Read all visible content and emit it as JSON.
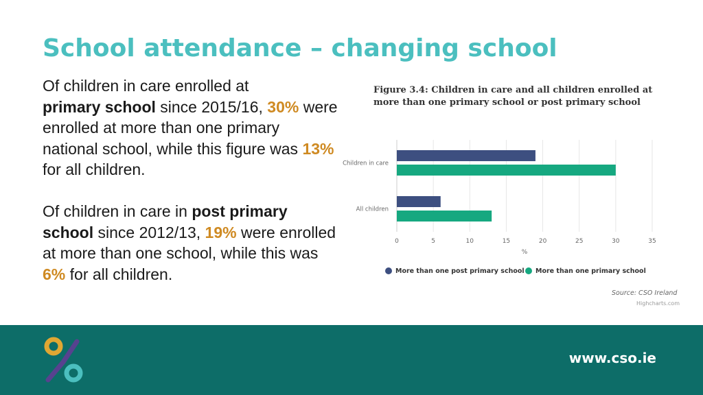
{
  "title": "School attendance – changing school",
  "paragraph1": {
    "t1": "Of children in care enrolled at",
    "bold": "primary school",
    "t2": "since 2015/16,",
    "pct1": "30%",
    "t3": "were enrolled at more than one primary national school, while this figure was",
    "pct2": "13%",
    "t4": "for all children."
  },
  "paragraph2": {
    "t1": "Of children in care in",
    "bold1": "post primary",
    "bold2": "school",
    "t2": "since 2012/13,",
    "pct1": "19%",
    "t3": "were enrolled at more than one school, while this was",
    "pct2": "6%",
    "t4": "for all children."
  },
  "chart_data": {
    "type": "bar",
    "orientation": "horizontal",
    "title": "Figure 3.4: Children in care and all children enrolled at more than one primary school or post primary school",
    "categories": [
      "Children in care",
      "All children"
    ],
    "series": [
      {
        "name": "More than one post primary school",
        "color": "#3d4f80",
        "values": [
          19,
          6
        ]
      },
      {
        "name": "More than one primary school",
        "color": "#16a880",
        "values": [
          30,
          13
        ]
      }
    ],
    "xlabel": "%",
    "xlim": [
      0,
      35
    ],
    "xticks": [
      0,
      5,
      10,
      15,
      20,
      25,
      30,
      35
    ],
    "grid": true,
    "legend": "bottom"
  },
  "source": "Source: CSO Ireland",
  "credit": "Highcharts.com",
  "footer": {
    "url": "www.cso.ie",
    "color": "#0d6d68"
  },
  "colors": {
    "title": "#4bbfbf",
    "highlight": "#cf8a22"
  }
}
